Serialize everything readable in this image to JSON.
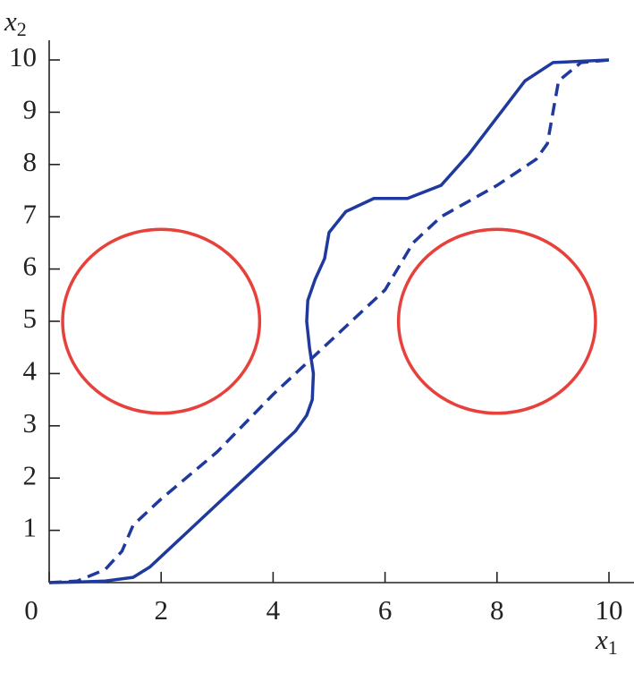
{
  "chart_data": {
    "type": "line",
    "xlabel": {
      "text": "x",
      "subscript": "1"
    },
    "ylabel": {
      "text": "x",
      "subscript": "2"
    },
    "xlim": [
      0,
      10
    ],
    "ylim": [
      0,
      10
    ],
    "xticks": [
      0,
      2,
      4,
      6,
      8,
      10
    ],
    "yticks": [
      1,
      2,
      3,
      4,
      5,
      6,
      7,
      8,
      9,
      10
    ],
    "series": [
      {
        "color": "#1f3a9c",
        "dash": false,
        "x": [
          0,
          0.5,
          1,
          1.5,
          1.8,
          2,
          2.5,
          3,
          3.5,
          4,
          4.4,
          4.6,
          4.7,
          4.72,
          4.65,
          4.6,
          4.62,
          4.75,
          4.92,
          5.0,
          5.3,
          5.8,
          6.4,
          7.0,
          7.5,
          8,
          8.5,
          9,
          10
        ],
        "values": [
          0,
          0.01,
          0.03,
          0.1,
          0.3,
          0.5,
          1.0,
          1.5,
          2.0,
          2.5,
          2.9,
          3.2,
          3.5,
          4.0,
          4.5,
          5.0,
          5.4,
          5.8,
          6.2,
          6.7,
          7.1,
          7.35,
          7.35,
          7.6,
          8.2,
          8.9,
          9.6,
          9.95,
          10
        ]
      },
      {
        "color": "#1f3a9c",
        "dash": true,
        "x": [
          0,
          0.5,
          1,
          1.3,
          1.5,
          2,
          3,
          4,
          5,
          6,
          6.5,
          7,
          8,
          8.7,
          8.9,
          9.05,
          9.1,
          9.5,
          10
        ],
        "values": [
          0,
          0.03,
          0.25,
          0.6,
          1.1,
          1.6,
          2.5,
          3.6,
          4.6,
          5.6,
          6.5,
          7.0,
          7.6,
          8.1,
          8.4,
          9.3,
          9.6,
          9.95,
          10
        ]
      }
    ],
    "circles": {
      "color": "#e8403a",
      "cx": [
        2,
        8
      ],
      "cy": [
        5,
        5
      ],
      "r": [
        1.76,
        1.76
      ]
    }
  }
}
